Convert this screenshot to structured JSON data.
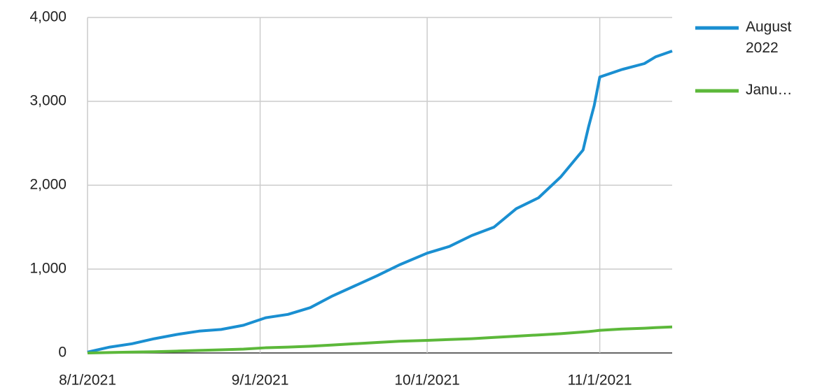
{
  "chart_data": {
    "type": "line",
    "x": [
      "8/1/2021",
      "8/5/2021",
      "8/9/2021",
      "8/13/2021",
      "8/17/2021",
      "8/21/2021",
      "8/25/2021",
      "8/29/2021",
      "9/2/2021",
      "9/6/2021",
      "9/10/2021",
      "9/14/2021",
      "9/18/2021",
      "9/22/2021",
      "9/26/2021",
      "10/1/2021",
      "10/5/2021",
      "10/9/2021",
      "10/13/2021",
      "10/17/2021",
      "10/21/2021",
      "10/25/2021",
      "10/29/2021",
      "10/30/2021",
      "10/31/2021",
      "11/1/2021",
      "11/5/2021",
      "11/9/2021",
      "11/11/2021",
      "11/14/2021"
    ],
    "series": [
      {
        "name": "August 2022",
        "color": "#1a8fd1",
        "values": [
          10,
          70,
          110,
          170,
          220,
          260,
          280,
          330,
          420,
          460,
          540,
          680,
          800,
          920,
          1050,
          1190,
          1270,
          1400,
          1500,
          1720,
          1850,
          2100,
          2420,
          2700,
          2950,
          3290,
          3380,
          3450,
          3530,
          3600
        ]
      },
      {
        "name": "Janu…",
        "color": "#5cb83a",
        "values": [
          0,
          5,
          10,
          15,
          22,
          30,
          38,
          46,
          62,
          70,
          80,
          95,
          110,
          125,
          140,
          150,
          160,
          170,
          185,
          200,
          215,
          230,
          250,
          255,
          262,
          270,
          285,
          295,
          302,
          310
        ]
      }
    ],
    "xlim": [
      "8/1/2021",
      "11/14/2021"
    ],
    "xticks": [
      "8/1/2021",
      "9/1/2021",
      "10/1/2021",
      "11/1/2021"
    ],
    "ylim": [
      0,
      4000
    ],
    "yticks": [
      0,
      {
        "value": 1000,
        "label": "1,000"
      },
      {
        "value": 2000,
        "label": "2,000"
      },
      {
        "value": 3000,
        "label": "3,000"
      },
      {
        "value": 4000,
        "label": "4,000"
      }
    ],
    "grid": true,
    "legend": "right"
  }
}
